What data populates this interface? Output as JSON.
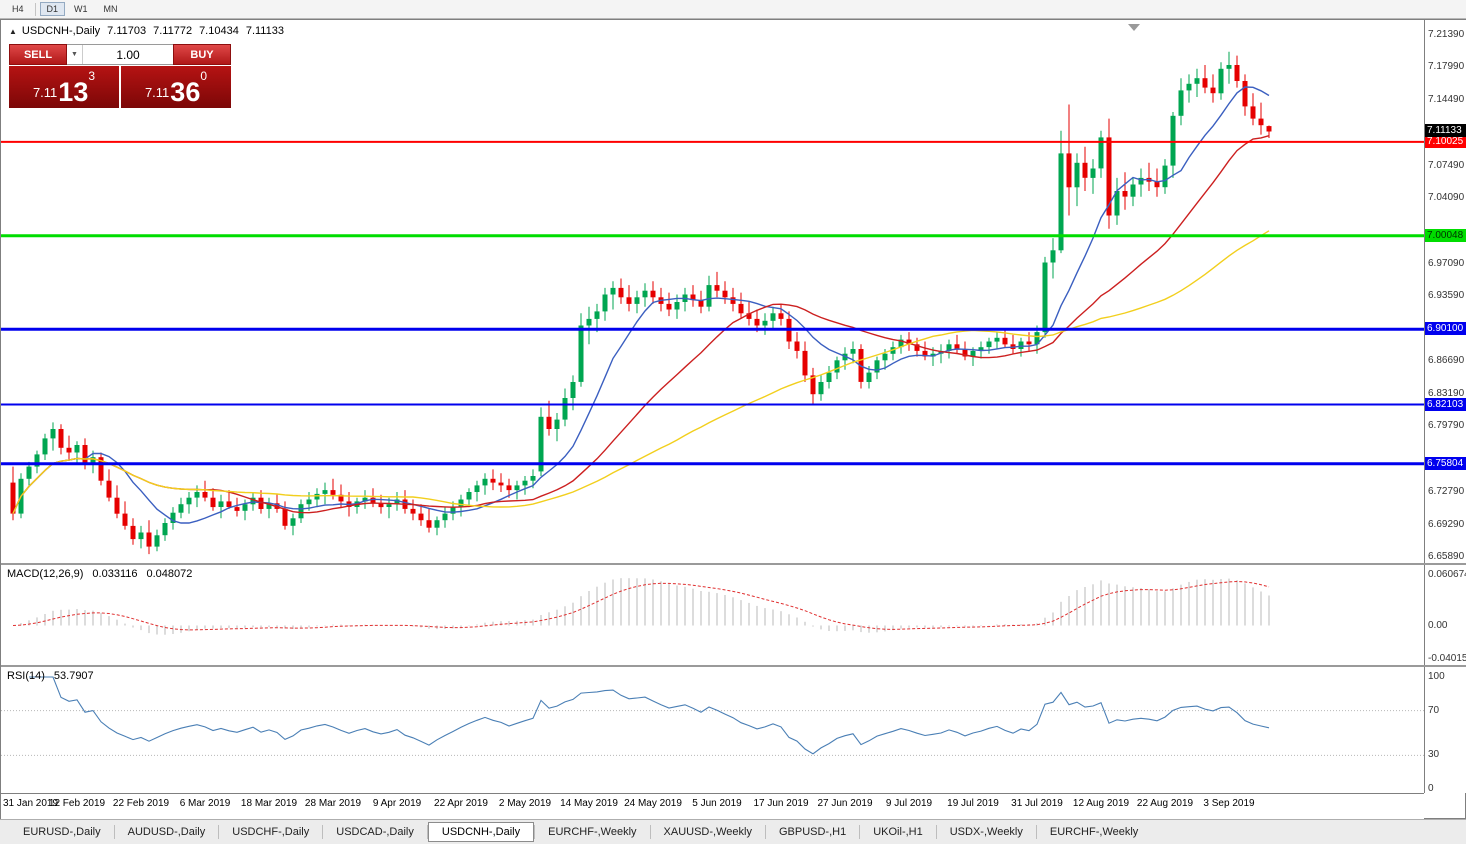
{
  "colors": {
    "bull": "#00a651",
    "bear": "#e60000",
    "ma_fast": "#3b5fc0",
    "ma_mid": "#cc2020",
    "ma_slow": "#f2cf1d",
    "rsi_line": "#4a7fb5",
    "macd_hist": "#c8c8c8",
    "macd_signal": "#e03030",
    "current_price_box": "#000000",
    "axis_text": "#333333"
  },
  "icons": {
    "collapse_panel": "▲",
    "volume_dropdown": "▼"
  },
  "toolbar": {
    "periods": [
      {
        "label": "H4",
        "active": false
      },
      {
        "label": "D1",
        "active": true
      },
      {
        "label": "W1",
        "active": false
      },
      {
        "label": "MN",
        "active": false
      }
    ]
  },
  "window": {
    "symbol_title": "USDCNH-,Daily",
    "ohlc": {
      "open": "7.11703",
      "high": "7.11772",
      "low": "7.10434",
      "close": "7.11133"
    }
  },
  "trade_panel": {
    "sell_label": "SELL",
    "buy_label": "BUY",
    "volume": "1.00",
    "bid": {
      "prefix": "7.11",
      "big": "13",
      "sup": "3"
    },
    "ask": {
      "prefix": "7.11",
      "big": "36",
      "sup": "0"
    }
  },
  "macd_panel": {
    "label": "MACD(12,26,9)",
    "macd_value": "0.033116",
    "signal_value": "0.048072",
    "axis_labels": [
      "0.060674",
      "0.00",
      "-0.040152"
    ]
  },
  "rsi_panel": {
    "label": "RSI(14)",
    "value": "53.7907",
    "axis_labels": [
      "100",
      "70",
      "30",
      "0"
    ]
  },
  "tabs": [
    {
      "label": "EURUSD-,Daily",
      "active": false
    },
    {
      "label": "AUDUSD-,Daily",
      "active": false
    },
    {
      "label": "USDCHF-,Daily",
      "active": false
    },
    {
      "label": "USDCAD-,Daily",
      "active": false
    },
    {
      "label": "USDCNH-,Daily",
      "active": true
    },
    {
      "label": "EURCHF-,Weekly",
      "active": false
    },
    {
      "label": "XAUUSD-,Weekly",
      "active": false
    },
    {
      "label": "GBPUSD-,H1",
      "active": false
    },
    {
      "label": "UKOil-,H1",
      "active": false
    },
    {
      "label": "USDX-,Weekly",
      "active": false
    },
    {
      "label": "EURCHF-,Weekly",
      "active": false
    }
  ],
  "chart_data": {
    "type": "candlestick",
    "title": "USDCNH-,Daily",
    "symbol": "USDCNH",
    "timeframe": "Daily",
    "ylim": [
      6.6589,
      7.2139
    ],
    "y_ticks": [
      "7.21390",
      "7.17990",
      "7.14490",
      "7.07490",
      "7.04090",
      "6.97090",
      "6.93590",
      "6.86690",
      "6.83190",
      "6.79790",
      "6.72790",
      "6.69290",
      "6.65890"
    ],
    "x_labels": [
      "31 Jan 2019",
      "12 Feb 2019",
      "22 Feb 2019",
      "6 Mar 2019",
      "18 Mar 2019",
      "28 Mar 2019",
      "9 Apr 2019",
      "22 Apr 2019",
      "2 May 2019",
      "14 May 2019",
      "24 May 2019",
      "5 Jun 2019",
      "17 Jun 2019",
      "27 Jun 2019",
      "9 Jul 2019",
      "19 Jul 2019",
      "31 Jul 2019",
      "12 Aug 2019",
      "22 Aug 2019",
      "3 Sep 2019"
    ],
    "label_every": 8,
    "current_price": {
      "value": 7.11133,
      "label": "7.11133"
    },
    "levels": [
      {
        "price": 7.10025,
        "label": "7.10025",
        "color": "#ff0000",
        "thickness": 2
      },
      {
        "price": 7.00048,
        "label": "7.00048",
        "color": "#00dd00",
        "thickness": 3,
        "text_color": "#003300"
      },
      {
        "price": 6.901,
        "label": "6.90100",
        "color": "#0000ee",
        "thickness": 3
      },
      {
        "price": 6.82103,
        "label": "6.82103",
        "color": "#0000ee",
        "thickness": 2
      },
      {
        "price": 6.75804,
        "label": "6.75804",
        "color": "#0000ee",
        "thickness": 3
      }
    ],
    "moving_averages": [
      {
        "period": 10,
        "color": "#3b5fc0"
      },
      {
        "period": 25,
        "color": "#cc2020"
      },
      {
        "period": 50,
        "color": "#f2cf1d"
      }
    ],
    "indicators": {
      "macd": {
        "fast": 12,
        "slow": 26,
        "signal": 9,
        "range": [
          -0.040152,
          0.060674
        ]
      },
      "rsi": {
        "period": 14,
        "range": [
          0,
          100
        ],
        "levels": [
          70,
          30
        ]
      }
    },
    "ohlc": [
      [
        6.738,
        6.755,
        6.698,
        6.705
      ],
      [
        6.705,
        6.748,
        6.7,
        6.742
      ],
      [
        6.742,
        6.76,
        6.735,
        6.755
      ],
      [
        6.755,
        6.772,
        6.748,
        6.768
      ],
      [
        6.768,
        6.79,
        6.762,
        6.785
      ],
      [
        6.785,
        6.802,
        6.772,
        6.795
      ],
      [
        6.795,
        6.8,
        6.768,
        6.775
      ],
      [
        6.775,
        6.788,
        6.762,
        6.77
      ],
      [
        6.77,
        6.782,
        6.758,
        6.778
      ],
      [
        6.778,
        6.785,
        6.752,
        6.758
      ],
      [
        6.758,
        6.772,
        6.748,
        6.765
      ],
      [
        6.765,
        6.77,
        6.735,
        6.74
      ],
      [
        6.74,
        6.752,
        6.718,
        6.722
      ],
      [
        6.722,
        6.735,
        6.7,
        6.705
      ],
      [
        6.705,
        6.718,
        6.688,
        6.692
      ],
      [
        6.692,
        6.7,
        6.672,
        6.678
      ],
      [
        6.678,
        6.692,
        6.668,
        6.685
      ],
      [
        6.685,
        6.698,
        6.662,
        6.67
      ],
      [
        6.67,
        6.688,
        6.665,
        6.682
      ],
      [
        6.682,
        6.7,
        6.676,
        6.695
      ],
      [
        6.695,
        6.712,
        6.688,
        6.706
      ],
      [
        6.706,
        6.722,
        6.7,
        6.715
      ],
      [
        6.715,
        6.728,
        6.705,
        6.722
      ],
      [
        6.722,
        6.735,
        6.712,
        6.728
      ],
      [
        6.728,
        6.74,
        6.718,
        6.722
      ],
      [
        6.722,
        6.732,
        6.708,
        6.712
      ],
      [
        6.712,
        6.725,
        6.7,
        6.718
      ],
      [
        6.718,
        6.73,
        6.71,
        6.712
      ],
      [
        6.712,
        6.722,
        6.702,
        6.708
      ],
      [
        6.708,
        6.72,
        6.698,
        6.715
      ],
      [
        6.715,
        6.728,
        6.708,
        6.722
      ],
      [
        6.722,
        6.73,
        6.705,
        6.71
      ],
      [
        6.71,
        6.722,
        6.7,
        6.716
      ],
      [
        6.716,
        6.726,
        6.706,
        6.71
      ],
      [
        6.71,
        6.718,
        6.688,
        6.692
      ],
      [
        6.692,
        6.705,
        6.682,
        6.7
      ],
      [
        6.7,
        6.72,
        6.695,
        6.715
      ],
      [
        6.715,
        6.728,
        6.708,
        6.72
      ],
      [
        6.72,
        6.732,
        6.712,
        6.726
      ],
      [
        6.726,
        6.738,
        6.715,
        6.73
      ],
      [
        6.73,
        6.742,
        6.72,
        6.725
      ],
      [
        6.725,
        6.736,
        6.712,
        6.718
      ],
      [
        6.718,
        6.728,
        6.702,
        6.712
      ],
      [
        6.712,
        6.722,
        6.705,
        6.718
      ],
      [
        6.718,
        6.73,
        6.71,
        6.722
      ],
      [
        6.722,
        6.732,
        6.712,
        6.716
      ],
      [
        6.716,
        6.725,
        6.705,
        6.712
      ],
      [
        6.712,
        6.722,
        6.7,
        6.715
      ],
      [
        6.715,
        6.728,
        6.708,
        6.72
      ],
      [
        6.72,
        6.73,
        6.705,
        6.71
      ],
      [
        6.71,
        6.72,
        6.698,
        6.705
      ],
      [
        6.705,
        6.715,
        6.692,
        6.698
      ],
      [
        6.698,
        6.71,
        6.685,
        6.69
      ],
      [
        6.69,
        6.702,
        6.682,
        6.698
      ],
      [
        6.698,
        6.712,
        6.69,
        6.705
      ],
      [
        6.705,
        6.718,
        6.698,
        6.712
      ],
      [
        6.712,
        6.725,
        6.702,
        6.72
      ],
      [
        6.72,
        6.732,
        6.712,
        6.728
      ],
      [
        6.728,
        6.74,
        6.718,
        6.735
      ],
      [
        6.735,
        6.748,
        6.725,
        6.742
      ],
      [
        6.742,
        6.752,
        6.73,
        6.738
      ],
      [
        6.738,
        6.748,
        6.728,
        6.735
      ],
      [
        6.735,
        6.742,
        6.722,
        6.73
      ],
      [
        6.73,
        6.74,
        6.72,
        6.735
      ],
      [
        6.735,
        6.745,
        6.725,
        6.74
      ],
      [
        6.74,
        6.752,
        6.732,
        6.745
      ],
      [
        6.75,
        6.818,
        6.745,
        6.808
      ],
      [
        6.808,
        6.825,
        6.788,
        6.795
      ],
      [
        6.795,
        6.812,
        6.782,
        6.805
      ],
      [
        6.805,
        6.838,
        6.798,
        6.828
      ],
      [
        6.828,
        6.852,
        6.815,
        6.845
      ],
      [
        6.845,
        6.918,
        6.84,
        6.905
      ],
      [
        6.905,
        6.925,
        6.885,
        6.912
      ],
      [
        6.912,
        6.928,
        6.898,
        6.92
      ],
      [
        6.92,
        6.945,
        6.91,
        6.938
      ],
      [
        6.938,
        6.952,
        6.922,
        6.945
      ],
      [
        6.945,
        6.955,
        6.928,
        6.935
      ],
      [
        6.935,
        6.948,
        6.92,
        6.928
      ],
      [
        6.928,
        6.942,
        6.918,
        6.935
      ],
      [
        6.935,
        6.95,
        6.925,
        6.942
      ],
      [
        6.942,
        6.952,
        6.928,
        6.935
      ],
      [
        6.935,
        6.945,
        6.92,
        6.928
      ],
      [
        6.928,
        6.94,
        6.915,
        6.922
      ],
      [
        6.922,
        6.938,
        6.912,
        6.93
      ],
      [
        6.93,
        6.945,
        6.92,
        6.938
      ],
      [
        6.938,
        6.948,
        6.925,
        6.932
      ],
      [
        6.932,
        6.942,
        6.918,
        6.925
      ],
      [
        6.925,
        6.958,
        6.92,
        6.948
      ],
      [
        6.948,
        6.962,
        6.935,
        6.942
      ],
      [
        6.942,
        6.952,
        6.928,
        6.935
      ],
      [
        6.935,
        6.945,
        6.92,
        6.928
      ],
      [
        6.928,
        6.94,
        6.912,
        6.918
      ],
      [
        6.918,
        6.93,
        6.905,
        6.912
      ],
      [
        6.912,
        6.922,
        6.898,
        6.905
      ],
      [
        6.905,
        6.918,
        6.895,
        6.91
      ],
      [
        6.91,
        6.925,
        6.9,
        6.918
      ],
      [
        6.918,
        6.928,
        6.905,
        6.912
      ],
      [
        6.912,
        6.92,
        6.88,
        6.888
      ],
      [
        6.888,
        6.898,
        6.87,
        6.878
      ],
      [
        6.878,
        6.888,
        6.845,
        6.852
      ],
      [
        6.852,
        6.86,
        6.821,
        6.832
      ],
      [
        6.832,
        6.852,
        6.825,
        6.845
      ],
      [
        6.845,
        6.862,
        6.838,
        6.855
      ],
      [
        6.855,
        6.872,
        6.848,
        6.868
      ],
      [
        6.868,
        6.882,
        6.858,
        6.875
      ],
      [
        6.875,
        6.888,
        6.865,
        6.88
      ],
      [
        6.88,
        6.885,
        6.838,
        6.845
      ],
      [
        6.845,
        6.862,
        6.838,
        6.855
      ],
      [
        6.855,
        6.872,
        6.848,
        6.868
      ],
      [
        6.868,
        6.88,
        6.858,
        6.875
      ],
      [
        6.875,
        6.888,
        6.868,
        6.882
      ],
      [
        6.882,
        6.895,
        6.875,
        6.89
      ],
      [
        6.89,
        6.898,
        6.878,
        6.885
      ],
      [
        6.885,
        6.892,
        6.872,
        6.878
      ],
      [
        6.878,
        6.888,
        6.868,
        6.872
      ],
      [
        6.872,
        6.882,
        6.862,
        6.875
      ],
      [
        6.875,
        6.885,
        6.865,
        6.878
      ],
      [
        6.878,
        6.89,
        6.87,
        6.885
      ],
      [
        6.885,
        6.895,
        6.875,
        6.88
      ],
      [
        6.88,
        6.888,
        6.868,
        6.872
      ],
      [
        6.872,
        6.882,
        6.862,
        6.878
      ],
      [
        6.878,
        6.888,
        6.87,
        6.882
      ],
      [
        6.882,
        6.892,
        6.875,
        6.888
      ],
      [
        6.888,
        6.898,
        6.88,
        6.892
      ],
      [
        6.892,
        6.9,
        6.882,
        6.885
      ],
      [
        6.885,
        6.895,
        6.875,
        6.88
      ],
      [
        6.88,
        6.892,
        6.872,
        6.888
      ],
      [
        6.888,
        6.898,
        6.878,
        6.885
      ],
      [
        6.885,
        6.905,
        6.875,
        6.898
      ],
      [
        6.898,
        6.978,
        6.892,
        6.972
      ],
      [
        6.972,
        6.998,
        6.955,
        6.985
      ],
      [
        6.985,
        7.112,
        6.982,
        7.088
      ],
      [
        7.088,
        7.14,
        7.022,
        7.052
      ],
      [
        7.052,
        7.088,
        7.032,
        7.078
      ],
      [
        7.078,
        7.095,
        7.048,
        7.062
      ],
      [
        7.062,
        7.082,
        7.045,
        7.072
      ],
      [
        7.072,
        7.112,
        7.062,
        7.105
      ],
      [
        7.105,
        7.125,
        7.008,
        7.022
      ],
      [
        7.022,
        7.062,
        7.012,
        7.048
      ],
      [
        7.048,
        7.068,
        7.028,
        7.042
      ],
      [
        7.042,
        7.062,
        7.032,
        7.055
      ],
      [
        7.055,
        7.072,
        7.042,
        7.062
      ],
      [
        7.062,
        7.078,
        7.048,
        7.058
      ],
      [
        7.058,
        7.072,
        7.042,
        7.052
      ],
      [
        7.052,
        7.082,
        7.045,
        7.075
      ],
      [
        7.075,
        7.132,
        7.062,
        7.128
      ],
      [
        7.128,
        7.168,
        7.118,
        7.155
      ],
      [
        7.155,
        7.172,
        7.142,
        7.162
      ],
      [
        7.162,
        7.178,
        7.148,
        7.168
      ],
      [
        7.168,
        7.182,
        7.152,
        7.158
      ],
      [
        7.158,
        7.172,
        7.142,
        7.152
      ],
      [
        7.152,
        7.185,
        7.145,
        7.178
      ],
      [
        7.178,
        7.196,
        7.162,
        7.182
      ],
      [
        7.182,
        7.192,
        7.158,
        7.165
      ],
      [
        7.165,
        7.172,
        7.128,
        7.138
      ],
      [
        7.138,
        7.152,
        7.118,
        7.125
      ],
      [
        7.125,
        7.142,
        7.108,
        7.118
      ],
      [
        7.11703,
        7.11772,
        7.10434,
        7.11133
      ]
    ]
  }
}
